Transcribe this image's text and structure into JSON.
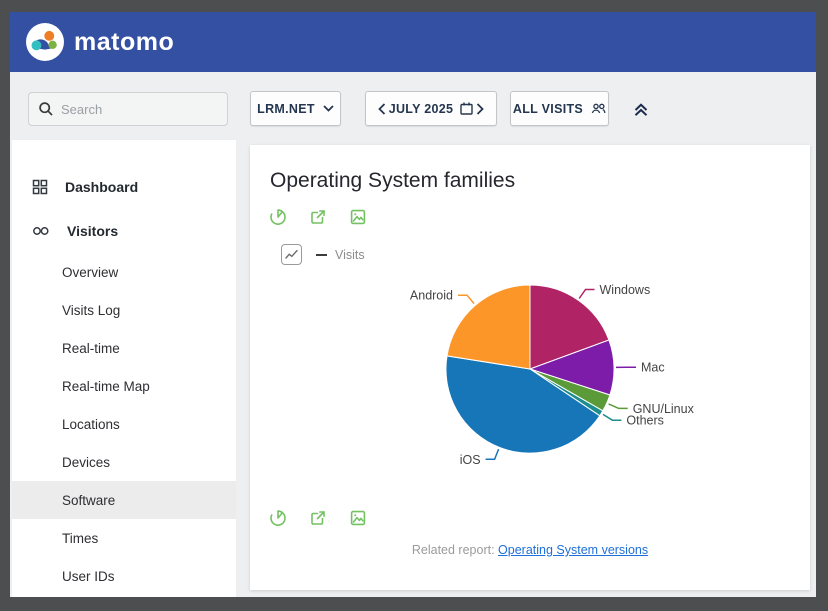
{
  "header": {
    "logo_text": "matomo"
  },
  "toolbar": {
    "search_placeholder": "Search",
    "site_selector_label": "LRM.NET",
    "period_label": "JULY 2025",
    "segment_label": "ALL VISITS"
  },
  "sidebar": {
    "items": [
      {
        "label": "Dashboard",
        "type": "section",
        "icon": "dashboard-icon"
      },
      {
        "label": "Visitors",
        "type": "section",
        "icon": "visitors-icon"
      },
      {
        "label": "Overview",
        "type": "sub"
      },
      {
        "label": "Visits Log",
        "type": "sub"
      },
      {
        "label": "Real-time",
        "type": "sub"
      },
      {
        "label": "Real-time Map",
        "type": "sub"
      },
      {
        "label": "Locations",
        "type": "sub"
      },
      {
        "label": "Devices",
        "type": "sub"
      },
      {
        "label": "Software",
        "type": "sub",
        "active": true
      },
      {
        "label": "Times",
        "type": "sub"
      },
      {
        "label": "User IDs",
        "type": "sub"
      }
    ]
  },
  "widget": {
    "title": "Operating System families",
    "legend_label": "Visits",
    "related_report_label": "Related report:",
    "related_report_link": "Operating System versions"
  },
  "chart_data": {
    "type": "pie",
    "title": "Operating System families",
    "series_name": "Visits",
    "labels": [
      "Windows",
      "Mac",
      "GNU/Linux",
      "Others",
      "iOS",
      "Android"
    ],
    "values_percent": [
      19.4,
      10.6,
      3.3,
      1.1,
      43.1,
      22.5
    ],
    "colors": [
      "#b02364",
      "#7c1ca8",
      "#5b9a38",
      "#1d8e8e",
      "#1776b8",
      "#fd9628"
    ],
    "start_angle_deg": 0,
    "direction": "clockwise",
    "legend_position": "none",
    "label_color": "#444444"
  },
  "colors": {
    "header_blue": "#3450a3",
    "accent_green": "#74c163",
    "link_blue": "#1e6fd9",
    "background_gray": "#edeff0"
  }
}
